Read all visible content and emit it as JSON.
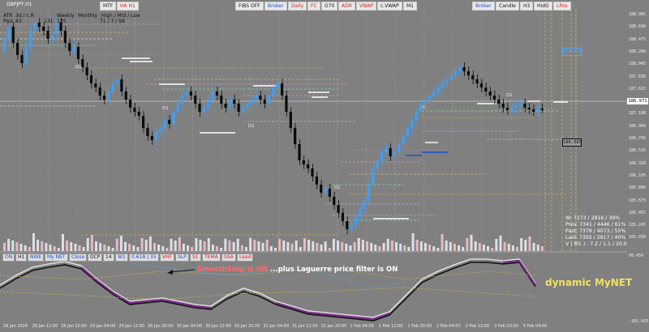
{
  "chart_title": "GBPJPY,H1",
  "info_block": {
    "col1": [
      "ATR",
      "Pips"
    ],
    "col2": [
      "3d / c.R",
      "83"
    ],
    "col3": [
      "Weekly",
      "125"
    ],
    "col4": [
      "Monthly",
      "71 / 7 / 58"
    ],
    "col5": [
      "High / Mid / Low"
    ],
    "pips_line": "131"
  },
  "top_toolbar_left": [
    {
      "label": "MTF",
      "color": "black"
    },
    {
      "label": "HA H1",
      "color": "red"
    }
  ],
  "top_toolbar_mid": [
    {
      "label": "FIBS OFF",
      "color": "black"
    },
    {
      "label": "Broker",
      "color": "blue"
    },
    {
      "label": "Daily",
      "color": "red"
    },
    {
      "label": "FC",
      "color": "red"
    },
    {
      "label": "G70",
      "color": "black"
    },
    {
      "label": "ADR",
      "color": "red"
    },
    {
      "label": "VWAP",
      "color": "red"
    },
    {
      "label": "c.VWAP",
      "color": "black"
    },
    {
      "label": "M1",
      "color": "black"
    }
  ],
  "top_toolbar_right": [
    {
      "label": "Broker",
      "color": "blue"
    },
    {
      "label": "Candle",
      "color": "black"
    },
    {
      "label": "H3",
      "color": "black"
    },
    {
      "label": "HidG",
      "color": "black"
    },
    {
      "label": "LPos",
      "color": "red"
    }
  ],
  "indicator_toolbar": [
    {
      "label": "ON",
      "color": "blue"
    },
    {
      "label": "H1",
      "color": "black"
    },
    {
      "label": "NWE",
      "color": "blue"
    },
    {
      "label": "My NET",
      "color": "blue"
    },
    {
      "label": "Close",
      "color": "blue"
    },
    {
      "label": "DCP",
      "color": "black"
    },
    {
      "label": "14",
      "color": "black"
    },
    {
      "label": "W1",
      "color": "blue"
    },
    {
      "label": "0.618 | 35",
      "color": "blue"
    },
    {
      "label": "VHF",
      "color": "red"
    },
    {
      "label": "SLP",
      "color": "blue"
    },
    {
      "label": "S1",
      "color": "red"
    },
    {
      "label": "TEMA",
      "color": "red"
    },
    {
      "label": "SSA",
      "color": "red"
    },
    {
      "label": "Lead",
      "color": "red"
    }
  ],
  "stats": [
    "W: 7273 / 2816 / 39%",
    "Prev: 7341 / 4446 / 61%",
    "Past: 7379 / 4073 / 55%",
    "Last: 7355 / 2917 / 40%",
    "V ( M1 ) : 7.2 / 1.1 / 20.0"
  ],
  "annotation_text_red": "SmoothStep is ON",
  "annotation_text_white": " ...plus Laguerre price filter is ON",
  "dynamic_label": "dynamic MyNET",
  "price_labels": [
    "188.905",
    "188.690",
    "188.475",
    "188.260",
    "188.045",
    "187.830",
    "187.615",
    "187.395",
    "187.180",
    "186.960",
    "186.745",
    "186.535",
    "186.320",
    "186.105",
    "185.890",
    "185.675",
    "185.455",
    "185.245",
    "185.030"
  ],
  "osc_labels": [
    "99.450",
    "-101.425"
  ],
  "current_price": "186.971",
  "marker_price_1": "187.671",
  "marker_price_2": "186.565",
  "time_labels": [
    "26 Jan 2024",
    "26 Jan 12:00",
    "26 Jan 20:00",
    "29 Jan 04:00",
    "29 Jan 12:00",
    "29 Jan 20:00",
    "30 Jan 04:00",
    "30 Jan 12:00",
    "30 Jan 20:00",
    "31 Jan 04:00",
    "31 Jan 12:00",
    "31 Jan 20:00",
    "1 Feb 04:00",
    "1 Feb 12:00",
    "1 Feb 20:00",
    "2 Feb 04:00",
    "2 Feb 12:00",
    "2 Feb 20:00",
    "5 Feb 04:00"
  ],
  "d1_markers": [
    "D1",
    "D1",
    "D1",
    "D1",
    "D1",
    "D1",
    "D1"
  ],
  "colors": {
    "background": "#808080",
    "bull": "#3aa0ff",
    "bear": "#0b0b0b",
    "accent_yellow": "#d8b63a",
    "purple": "#7b2a8a"
  }
}
